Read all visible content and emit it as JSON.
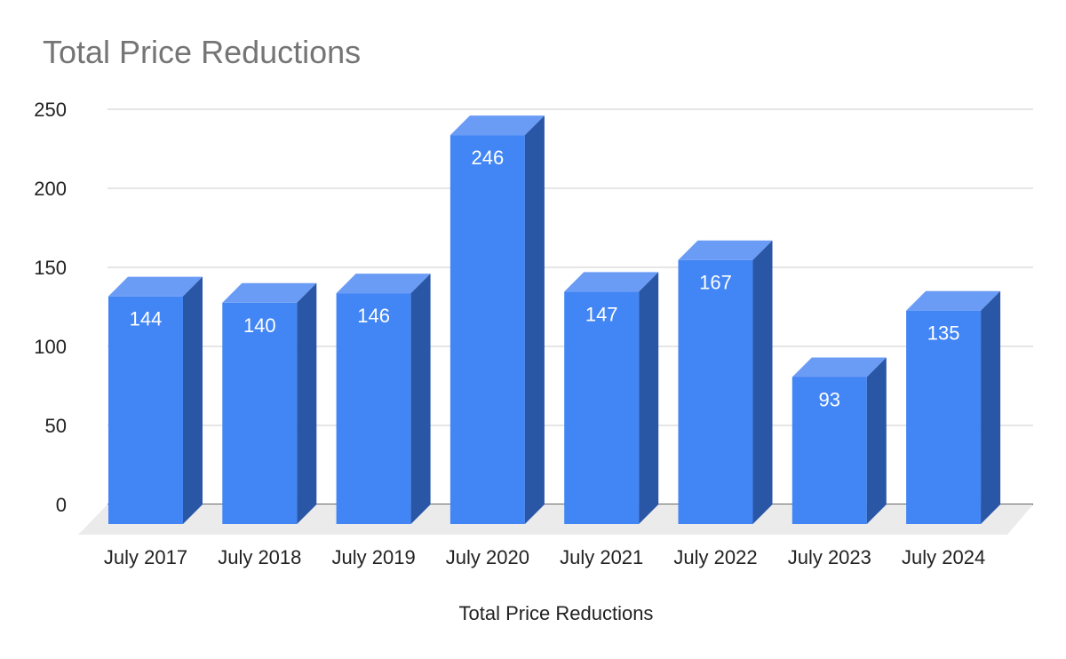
{
  "chart_data": {
    "type": "bar",
    "title": "Total Price Reductions",
    "xlabel": "Total Price Reductions",
    "ylabel": "",
    "categories": [
      "July 2017",
      "July 2018",
      "July 2019",
      "July 2020",
      "July 2021",
      "July 2022",
      "July 2023",
      "July 2024"
    ],
    "series": [
      {
        "values": [
          144,
          140,
          146,
          246,
          147,
          167,
          93,
          135
        ]
      }
    ],
    "ylim": [
      0,
      250
    ],
    "yticks": [
      0,
      50,
      100,
      150,
      200,
      250
    ],
    "grid": true,
    "legend": "none",
    "style": "3d",
    "colors": {
      "bar_front": "#4285f4",
      "bar_top": "#6a9cf6",
      "bar_side": "#2a56a6",
      "floor": "#ebebeb",
      "grid": "#cccccc",
      "title": "#757575"
    }
  }
}
